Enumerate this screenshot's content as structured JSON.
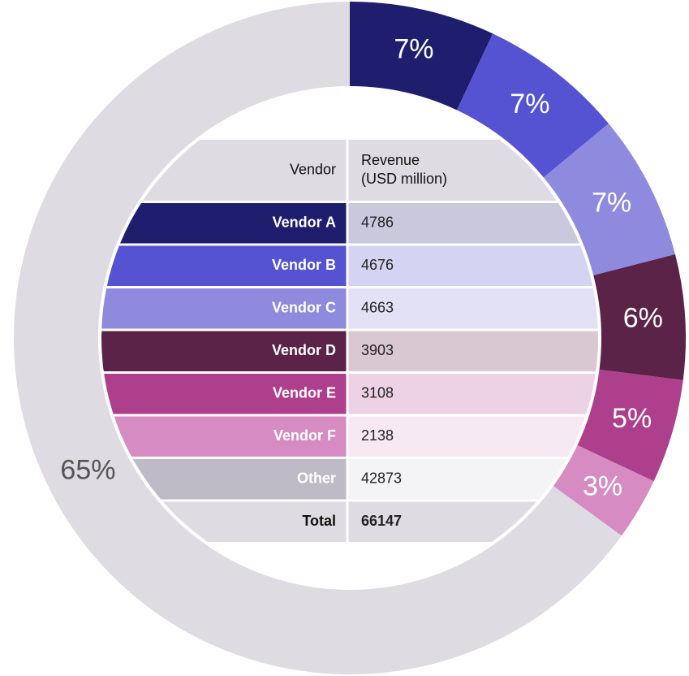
{
  "chart_data": {
    "type": "pie",
    "categories": [
      "Vendor A",
      "Vendor B",
      "Vendor C",
      "Vendor D",
      "Vendor E",
      "Vendor F",
      "Other"
    ],
    "values": [
      7,
      7,
      7,
      6,
      5,
      3,
      65
    ],
    "value_labels": [
      "7%",
      "7%",
      "7%",
      "6%",
      "5%",
      "3%",
      "65%"
    ],
    "colors": [
      "#1f1e6e",
      "#5553d1",
      "#8e8ade",
      "#5a2347",
      "#ad3f8c",
      "#d68cc2",
      "#dedbe3"
    ]
  },
  "table": {
    "header": [
      "Vendor",
      [
        "Revenue",
        "(USD million)"
      ]
    ],
    "rows": [
      [
        "Vendor A",
        4786
      ],
      [
        "Vendor B",
        4676
      ],
      [
        "Vendor C",
        4663
      ],
      [
        "Vendor D",
        3903
      ],
      [
        "Vendor E",
        3108
      ],
      [
        "Vendor F",
        2138
      ],
      [
        "Other",
        42873
      ]
    ],
    "row_colors": [
      "#1f1e6e",
      "#5553d1",
      "#8e8ade",
      "#5a2347",
      "#ad3f8c",
      "#d68cc2",
      "#bfbbc6"
    ],
    "value_colors": [
      "#c9c8dd",
      "#d4d3f2",
      "#e2e1f5",
      "#d9c7d2",
      "#edd2e6",
      "#f6e9f3",
      "#f4f4f6"
    ],
    "total": [
      "Total",
      66147
    ]
  }
}
